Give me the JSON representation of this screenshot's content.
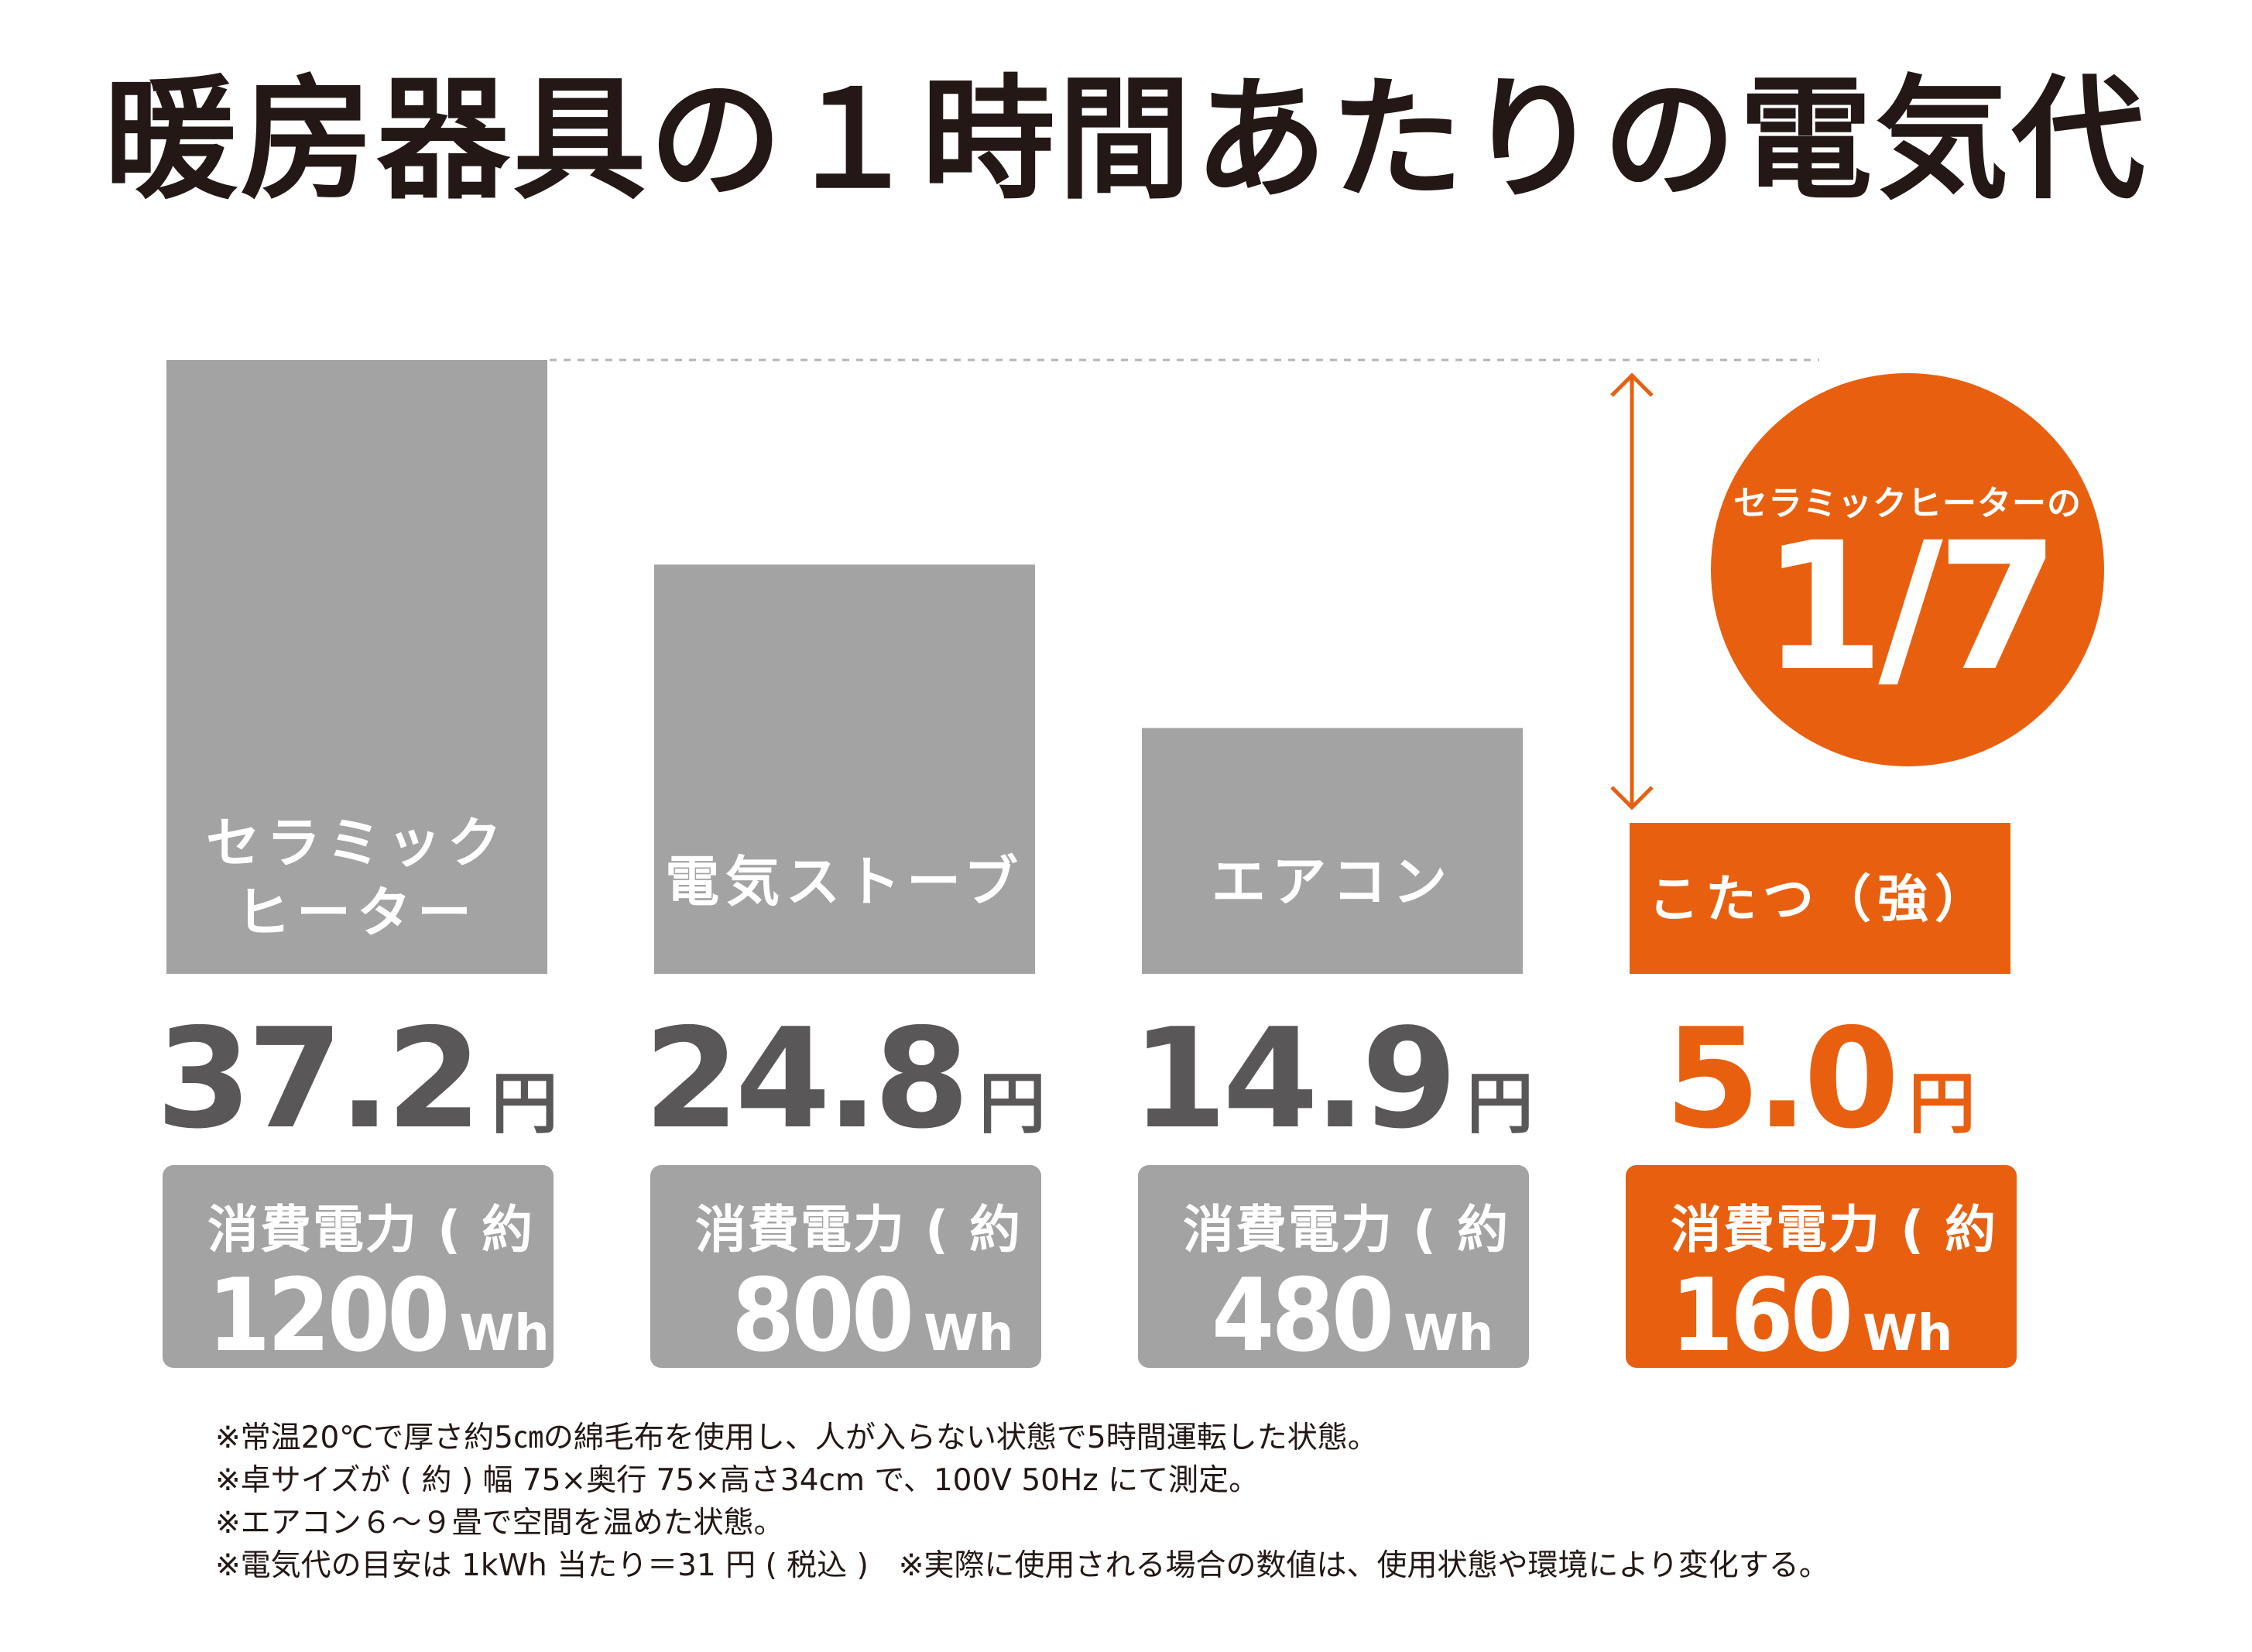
{
  "title": "暖房器具の１時間あたりの電気代",
  "colors": {
    "gray": "#a3a3a3",
    "accent": "#e8600f",
    "price_gray": "#595757",
    "text": "#231815"
  },
  "chart_data": {
    "type": "bar",
    "title": "暖房器具の１時間あたりの電気代",
    "categories": [
      "セラミックヒーター",
      "電気ストーブ",
      "エアコン",
      "こたつ(強)"
    ],
    "labels": [
      [
        "セラミック",
        "ヒーター"
      ],
      [
        "電気ストーブ"
      ],
      [
        "エアコン"
      ],
      [
        "こたつ（強）"
      ]
    ],
    "series": [
      {
        "name": "電気代",
        "unit": "円",
        "values": [
          37.2,
          24.8,
          14.9,
          5.0
        ],
        "display": [
          "37.2",
          "24.8",
          "14.9",
          "5.0"
        ]
      },
      {
        "name": "消費電力(約)",
        "unit": "Wh",
        "values": [
          1200,
          800,
          480,
          160
        ],
        "display": [
          "1200",
          "800",
          "480",
          "160"
        ]
      }
    ],
    "highlight_index": 3,
    "ylim": [
      0,
      37.2
    ],
    "annotation": {
      "sub": "セラミックヒーターの",
      "ratio": "1/7"
    }
  },
  "price_unit": "円",
  "power_caption": "消費電力 ( 約 )",
  "power_unit": "Wh",
  "notes": [
    "※常温20℃で厚さ約5㎝の綿毛布を使用し、人が入らない状態で5時間運転した状態。",
    "※卓サイズが ( 約 ) 幅 75×奥行 75×高さ34cm で、100V 50Hz にて測定。",
    "※エアコン６～９畳で空間を温めた状態。",
    "※電気代の目安は 1kWh 当たり＝31 円 ( 税込 )　※実際に使用される場合の数値は、使用状態や環境により変化する。"
  ]
}
